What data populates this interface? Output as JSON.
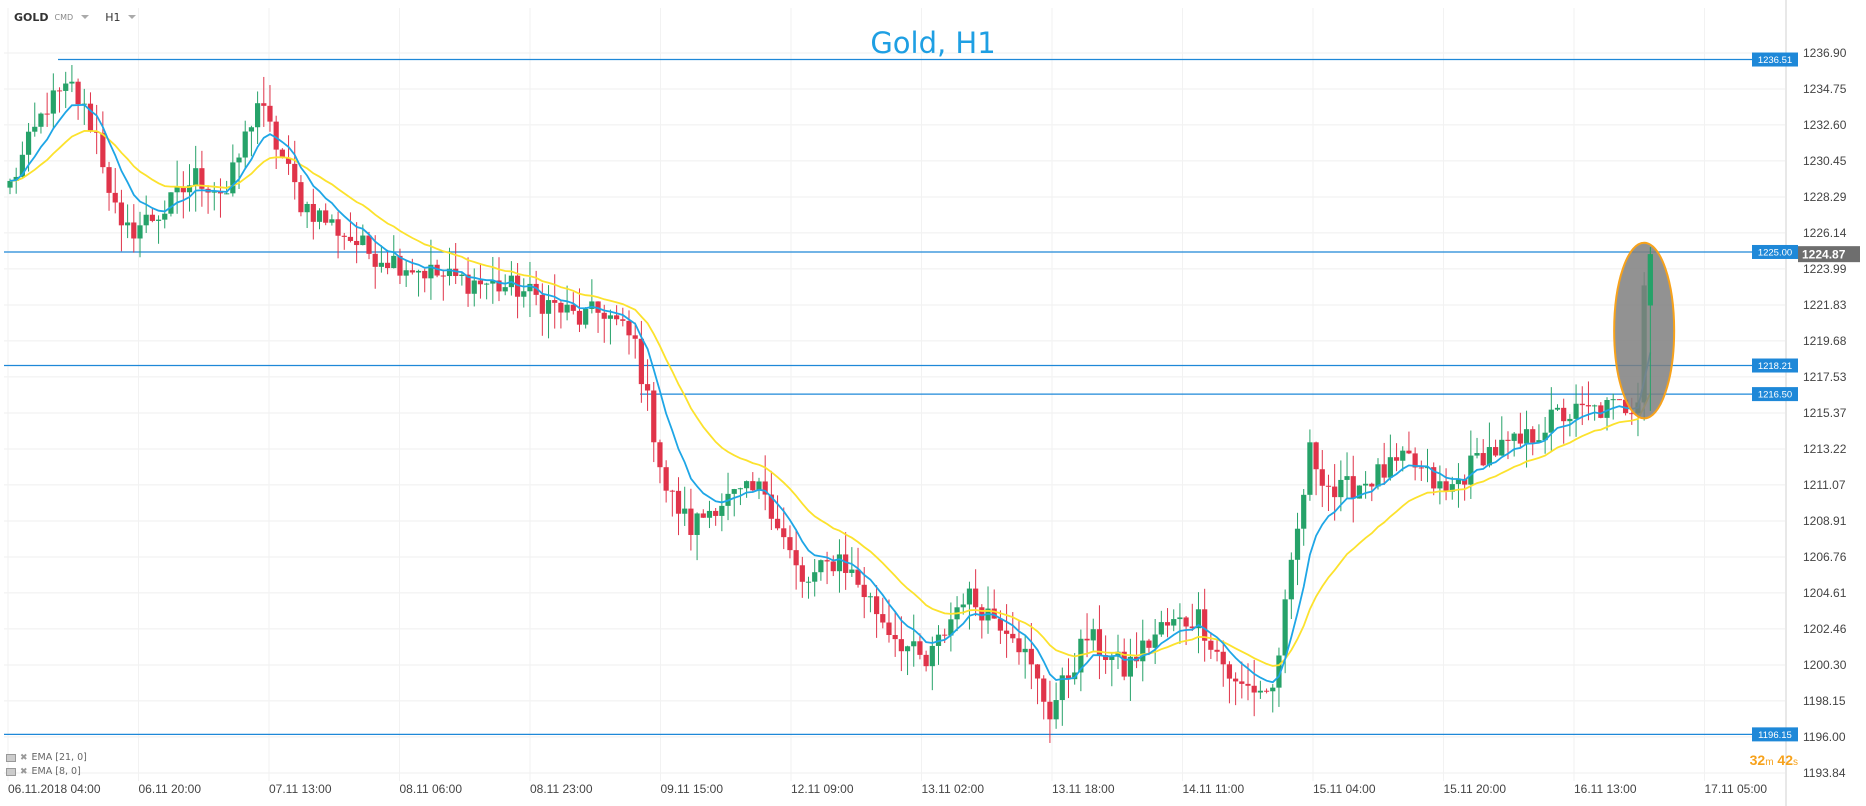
{
  "header": {
    "symbol": "GOLD",
    "market": "CMD",
    "timeframe": "H1"
  },
  "indicators": [
    {
      "label": "EMA [21, 0]"
    },
    {
      "label": "EMA [8, 0]"
    }
  ],
  "countdown": {
    "minutes": "32",
    "m": "m",
    "seconds": "42",
    "s": "s"
  },
  "colors": {
    "up": "#26a269",
    "down": "#e0344a",
    "ema_fast": "#1ea6e6",
    "ema_slow": "#fce22d",
    "level": "#1e88d8"
  },
  "chart_data": {
    "type": "candlestick",
    "title": "Gold, H1",
    "ylim": [
      1193.84,
      1236.9
    ],
    "y_ticks": [
      1236.9,
      1234.75,
      1232.6,
      1230.45,
      1228.29,
      1226.14,
      1223.99,
      1221.83,
      1219.68,
      1217.53,
      1215.37,
      1213.22,
      1211.07,
      1208.91,
      1206.76,
      1204.61,
      1202.46,
      1200.3,
      1198.15,
      1196.0,
      1193.84
    ],
    "y_tick_labels": [
      "1236.90",
      "1234.75",
      "1232.60",
      "1230.45",
      "1228.29",
      "1226.14",
      "1223.99",
      "1221.83",
      "1219.68",
      "1217.53",
      "1215.37",
      "1213.22",
      "1211.07",
      "1208.91",
      "1206.76",
      "1204.61",
      "1202.46",
      "1200.30",
      "1198.15",
      "1196.00",
      "1193.84"
    ],
    "x_tick_labels": [
      "06.11.2018 04:00",
      "06.11 20:00",
      "07.11 13:00",
      "08.11 06:00",
      "08.11 23:00",
      "09.11 15:00",
      "12.11 09:00",
      "13.11 02:00",
      "13.11 18:00",
      "14.11 11:00",
      "15.11 04:00",
      "15.11 20:00",
      "16.11 13:00",
      "17.11 05:00"
    ],
    "current_price": 1224.87,
    "current_price_label": "1224.87",
    "horizontal_levels": [
      {
        "value": 1236.51,
        "label": "1236.51"
      },
      {
        "value": 1225.0,
        "label": "1225.00"
      },
      {
        "value": 1218.21,
        "label": "1218.21"
      },
      {
        "value": 1216.5,
        "label": "1216.50"
      },
      {
        "value": 1196.15,
        "label": "1196.15"
      }
    ],
    "anchors": [
      [
        0,
        1229.0
      ],
      [
        6,
        1233.8
      ],
      [
        10,
        1234.8
      ],
      [
        14,
        1232.0
      ],
      [
        18,
        1226.0
      ],
      [
        25,
        1227.5
      ],
      [
        30,
        1229.5
      ],
      [
        35,
        1228.5
      ],
      [
        40,
        1234.0
      ],
      [
        47,
        1228.0
      ],
      [
        58,
        1225.0
      ],
      [
        70,
        1223.5
      ],
      [
        82,
        1222.8
      ],
      [
        92,
        1221.0
      ],
      [
        96,
        1221.5
      ],
      [
        101,
        1219.5
      ],
      [
        106,
        1210.8
      ],
      [
        110,
        1208.5
      ],
      [
        114,
        1210.0
      ],
      [
        122,
        1210.8
      ],
      [
        128,
        1205.0
      ],
      [
        134,
        1206.8
      ],
      [
        142,
        1202.5
      ],
      [
        148,
        1200.2
      ],
      [
        154,
        1204.5
      ],
      [
        162,
        1202.5
      ],
      [
        168,
        1197.5
      ],
      [
        174,
        1202.0
      ],
      [
        180,
        1200.0
      ],
      [
        186,
        1202.5
      ],
      [
        192,
        1203.2
      ],
      [
        198,
        1199.0
      ],
      [
        204,
        1198.8
      ],
      [
        210,
        1213.0
      ],
      [
        214,
        1210.5
      ],
      [
        220,
        1211.5
      ],
      [
        226,
        1212.5
      ],
      [
        232,
        1210.5
      ],
      [
        238,
        1213.0
      ],
      [
        244,
        1213.5
      ],
      [
        250,
        1215.2
      ],
      [
        256,
        1215.5
      ],
      [
        261,
        1215.8
      ],
      [
        263,
        1216.0
      ],
      [
        264,
        1223.0
      ],
      [
        265,
        1224.87
      ]
    ],
    "ema_fast_period": 8,
    "ema_slow_period": 21,
    "highlight": {
      "shape": "ellipse",
      "color": "#f7a21b",
      "fill": "#7f7f7f"
    }
  }
}
